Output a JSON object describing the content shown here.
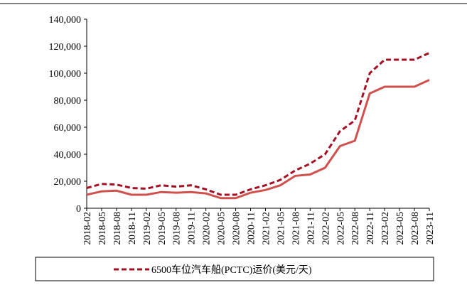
{
  "chart_data": {
    "type": "line",
    "categories": [
      "2018-02",
      "2018-05",
      "2018-08",
      "2018-11",
      "2019-02",
      "2019-05",
      "2019-08",
      "2019-11",
      "2020-02",
      "2020-05",
      "2020-08",
      "2020-11",
      "2021-02",
      "2021-05",
      "2021-08",
      "2021-11",
      "2022-02",
      "2022-05",
      "2022-08",
      "2022-11",
      "2023-02",
      "2023-05",
      "2023-08",
      "2023-11"
    ],
    "series": [
      {
        "name": "6500车位汽车船(PCTC)运价(美元/天)",
        "color": "#a50f22",
        "dashed": true,
        "values": [
          15000,
          18000,
          17500,
          15000,
          14500,
          17000,
          16000,
          17000,
          14000,
          10000,
          10000,
          14000,
          17000,
          21000,
          28000,
          33000,
          40000,
          57000,
          65000,
          100000,
          110000,
          110000,
          110000,
          115000
        ]
      },
      {
        "color": "#d0504d",
        "dashed": false,
        "values": [
          10000,
          12500,
          13000,
          10000,
          10000,
          12000,
          11500,
          12000,
          11000,
          7500,
          7500,
          11500,
          13500,
          17000,
          24000,
          25000,
          30000,
          46000,
          50000,
          85000,
          90000,
          90000,
          90000,
          95000
        ]
      }
    ],
    "ylim": [
      0,
      140000
    ],
    "yticks": [
      0,
      {
        "value": 20000,
        "label": "20,000"
      },
      {
        "value": 40000,
        "label": "40,000"
      },
      {
        "value": 60000,
        "label": "60,000"
      },
      {
        "value": 80000,
        "label": "80,000"
      },
      {
        "value": 100000,
        "label": "100,000"
      },
      {
        "value": 120000,
        "label": "120,000"
      },
      {
        "value": 140000,
        "label": "140,000"
      }
    ],
    "grid": false,
    "legend": "bottom"
  }
}
